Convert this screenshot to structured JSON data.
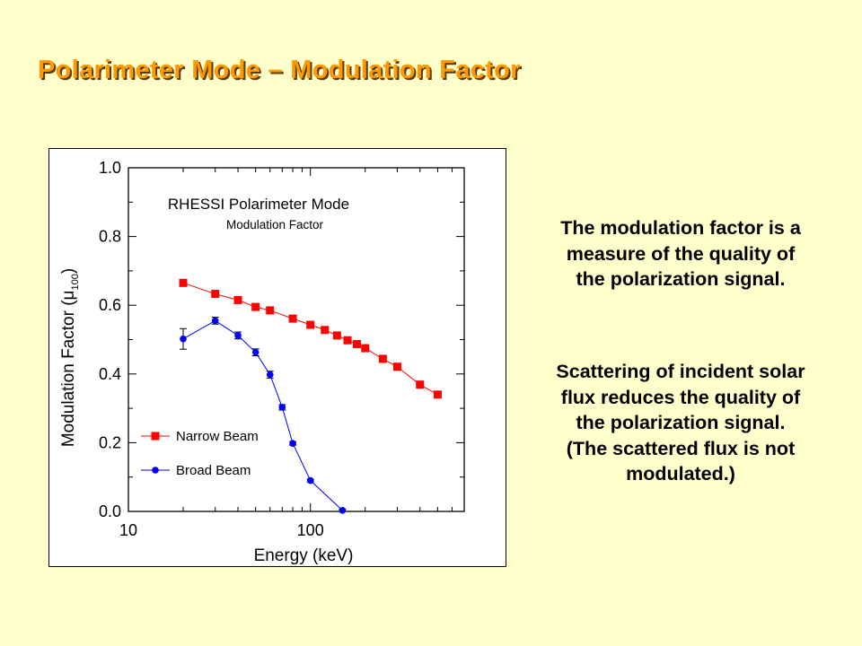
{
  "slide": {
    "title": "Polarimeter Mode – Modulation Factor"
  },
  "text_block": {
    "paragraph_1": [
      "The modulation factor is a",
      "measure of the quality of",
      "the polarization signal."
    ],
    "paragraph_2": [
      "Scattering of incident solar",
      "flux reduces the quality of",
      "the polarization signal.",
      "(The scattered flux is not",
      "modulated.)"
    ]
  },
  "chart_data": {
    "type": "line",
    "title": "RHESSI Polarimeter Mode",
    "subtitle": "Modulation Factor",
    "xlabel": "Energy (keV)",
    "ylabel": "Modulation Factor",
    "ylabel_symbol": "μ",
    "ylabel_subscript": "100",
    "xscale": "log",
    "xlim": [
      10,
      700
    ],
    "ylim": [
      0,
      1.0
    ],
    "x_ticks": [
      {
        "value": 10,
        "label": "10"
      },
      {
        "value": 100,
        "label": "100"
      }
    ],
    "y_ticks": [
      {
        "value": 0.0,
        "label": "0.0"
      },
      {
        "value": 0.2,
        "label": "0.2"
      },
      {
        "value": 0.4,
        "label": "0.4"
      },
      {
        "value": 0.6,
        "label": "0.6"
      },
      {
        "value": 0.8,
        "label": "0.8"
      },
      {
        "value": 1.0,
        "label": "1.0"
      }
    ],
    "grid": false,
    "legend_position": "bottom-left",
    "series": [
      {
        "name": "Narrow Beam",
        "color": "#ff0000",
        "marker": "square",
        "x": [
          20,
          30,
          40,
          50,
          60,
          80,
          100,
          120,
          140,
          160,
          180,
          200,
          250,
          300,
          400,
          500
        ],
        "y": [
          0.665,
          0.633,
          0.615,
          0.595,
          0.585,
          0.561,
          0.543,
          0.528,
          0.512,
          0.498,
          0.487,
          0.475,
          0.444,
          0.421,
          0.369,
          0.34
        ]
      },
      {
        "name": "Broad Beam",
        "color": "#0000ff",
        "marker": "circle",
        "x": [
          20,
          30,
          40,
          50,
          60,
          70,
          80,
          100,
          150
        ],
        "y": [
          0.502,
          0.555,
          0.512,
          0.463,
          0.398,
          0.303,
          0.198,
          0.09,
          0.003
        ],
        "yerr": [
          0.03,
          0.01,
          0.01,
          0.01,
          0.01,
          0.008,
          0.005,
          0.004,
          0.003
        ]
      }
    ]
  }
}
